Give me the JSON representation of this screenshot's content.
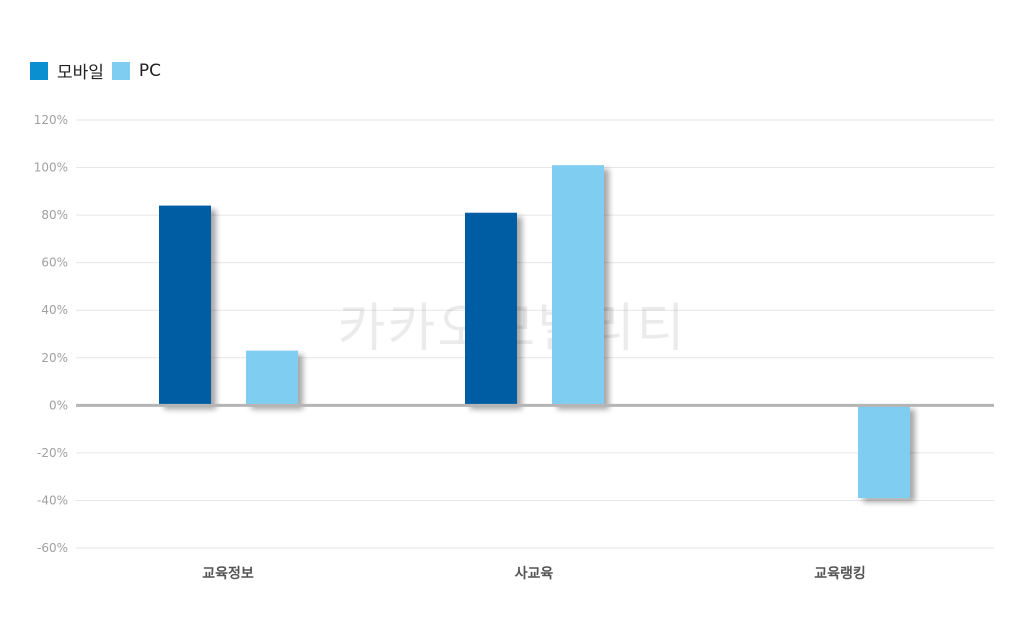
{
  "chart_data": {
    "type": "bar",
    "categories": [
      "교육정보",
      "사교육",
      "교육랭킹"
    ],
    "series": [
      {
        "name": "모바일",
        "color": "#005ba3",
        "values": [
          84,
          81,
          null
        ]
      },
      {
        "name": "PC",
        "color": "#80cdf2",
        "values": [
          23,
          101,
          -39
        ]
      }
    ],
    "ylim": [
      -60,
      120
    ],
    "yticks": [
      120,
      100,
      80,
      60,
      40,
      20,
      0,
      -20,
      -40,
      -60
    ],
    "ytick_suffix": "%",
    "grid": true,
    "legend_position": "top-left",
    "watermark": "카카오모빌리티"
  },
  "legend_swatch_colors": [
    "#0a8fd0",
    "#80cdf2"
  ]
}
